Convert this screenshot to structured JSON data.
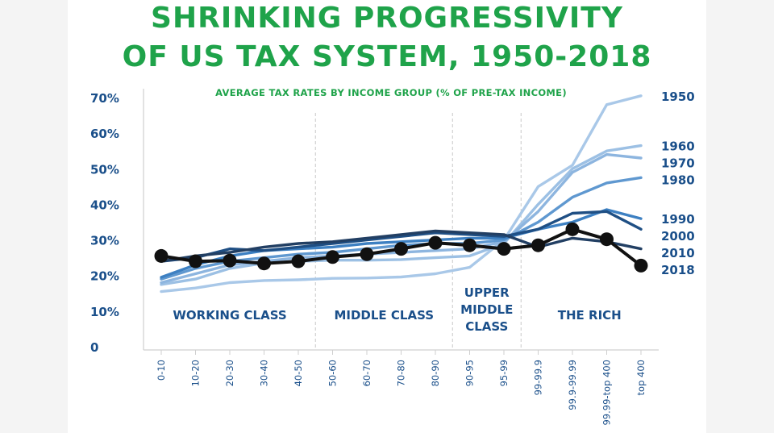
{
  "chart_data": {
    "type": "line",
    "title_lines": [
      "SHRINKING PROGRESSIVITY",
      "OF US TAX SYSTEM, 1950-2018"
    ],
    "subtitle": "AVERAGE TAX RATES BY INCOME GROUP (% OF PRE-TAX INCOME)",
    "xlabel": "",
    "ylabel": "",
    "ylim": [
      0,
      70
    ],
    "ytick_values": [
      0,
      10,
      20,
      30,
      40,
      50,
      60,
      70
    ],
    "ytick_labels": [
      "0",
      "10%",
      "20%",
      "30%",
      "40%",
      "50%",
      "60%",
      "70%"
    ],
    "categories": [
      "0-10",
      "10-20",
      "20-30",
      "30-40",
      "40-50",
      "50-60",
      "60-70",
      "70-80",
      "80-90",
      "90-95",
      "95-99",
      "99-99.9",
      "99.9-99.99",
      "99.99-top 400",
      "top 400"
    ],
    "groups": [
      {
        "label_lines": [
          "WORKING CLASS"
        ],
        "start": 0,
        "end": 4
      },
      {
        "label_lines": [
          "MIDDLE CLASS"
        ],
        "start": 5,
        "end": 8
      },
      {
        "label_lines": [
          "UPPER",
          "MIDDLE",
          "CLASS"
        ],
        "start": 9,
        "end": 10
      },
      {
        "label_lines": [
          "THE RICH"
        ],
        "start": 11,
        "end": 14
      }
    ],
    "series": [
      {
        "name": "1950",
        "color": "#a9c8e8",
        "values": [
          15.5,
          16.5,
          18,
          18.6,
          18.8,
          19.2,
          19.3,
          19.6,
          20.5,
          22.3,
          30,
          45,
          51,
          68,
          70.5
        ]
      },
      {
        "name": "1960",
        "color": "#9cc0e4",
        "values": [
          17.5,
          19,
          22,
          23.5,
          24,
          24.3,
          24.3,
          24.5,
          25,
          25.5,
          29,
          40,
          50,
          55,
          56.5
        ]
      },
      {
        "name": "1970",
        "color": "#8db5df",
        "values": [
          18,
          20.5,
          23,
          24,
          25,
          25.5,
          26,
          26.5,
          27,
          27.5,
          29.5,
          38,
          49,
          54,
          53
        ]
      },
      {
        "name": "1980",
        "color": "#5f98d0",
        "values": [
          19,
          22,
          24,
          25,
          26,
          26.5,
          27.5,
          28.5,
          29,
          29,
          30,
          35,
          42,
          46,
          47.5
        ]
      },
      {
        "name": "1990",
        "color": "#3d80c2",
        "values": [
          19.5,
          23,
          25.5,
          27,
          27.5,
          28,
          29,
          29.5,
          30,
          30.5,
          30.5,
          33,
          35,
          38.5,
          36
        ]
      },
      {
        "name": "2000",
        "color": "#1f4f84",
        "values": [
          24,
          25,
          27.5,
          27,
          28,
          29,
          30,
          31,
          32,
          31.5,
          31,
          33,
          37.5,
          38,
          33
        ]
      },
      {
        "name": "2010",
        "color": "#223f63",
        "values": [
          24,
          25.5,
          26.5,
          28,
          29,
          29.5,
          30.5,
          31.5,
          32.5,
          32,
          31.5,
          28,
          30.5,
          29.5,
          27.5
        ]
      },
      {
        "name": "2018",
        "color": "#111111",
        "values": [
          25.5,
          24,
          24.2,
          23.4,
          24,
          25.2,
          26,
          27.5,
          29.2,
          28.5,
          27.5,
          28.5,
          33,
          30.2,
          22.8
        ]
      }
    ],
    "series_label_color": "#1a4f8a",
    "axis_color": "#1a4f8a",
    "title_color": "#1fa34a"
  }
}
